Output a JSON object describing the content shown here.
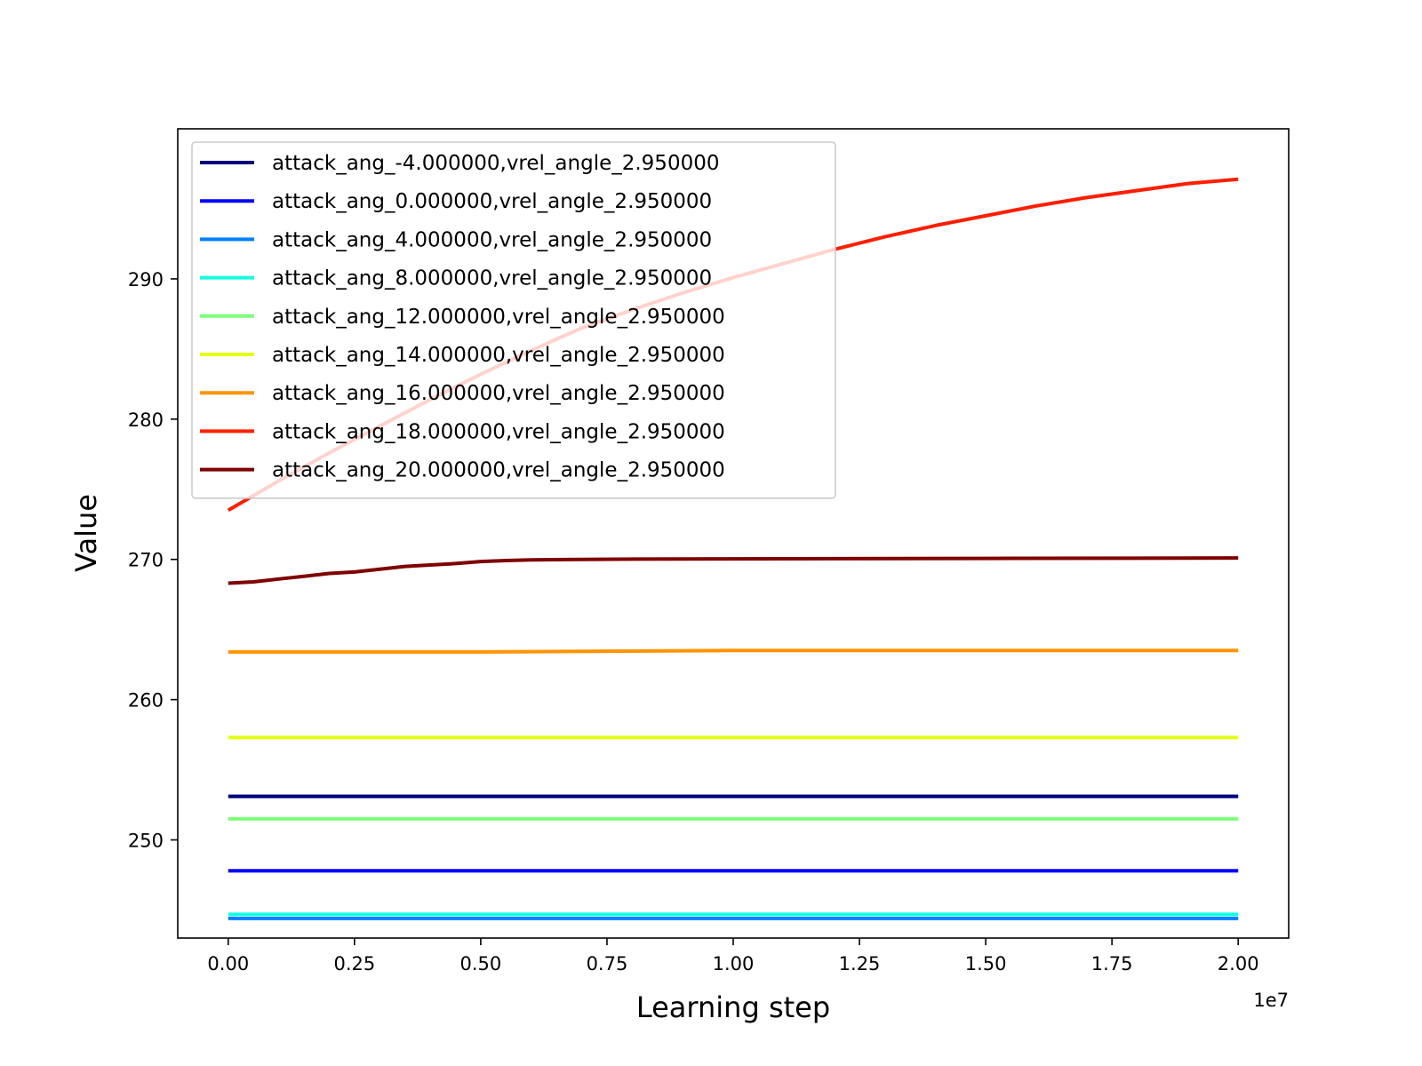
{
  "chart_data": {
    "type": "line",
    "xlabel": "Learning step",
    "ylabel": "Value",
    "x_offset_label": "1e7",
    "x_scale": 10000000,
    "xlim": [
      -0.1,
      2.1
    ],
    "ylim": [
      243.0,
      300.7
    ],
    "xticks": [
      0.0,
      0.25,
      0.5,
      0.75,
      1.0,
      1.25,
      1.5,
      1.75,
      2.0
    ],
    "xtick_labels": [
      "0.00",
      "0.25",
      "0.50",
      "0.75",
      "1.00",
      "1.25",
      "1.50",
      "1.75",
      "2.00"
    ],
    "yticks": [
      250,
      260,
      270,
      280,
      290
    ],
    "ytick_labels": [
      "250",
      "260",
      "270",
      "280",
      "290"
    ],
    "legend_placement": "upper-left",
    "grid": false,
    "series": [
      {
        "name": "attack_ang_-4.000000,vrel_angle_2.950000",
        "color": "#00007f",
        "x": [
          0.0,
          2.0
        ],
        "y": [
          253.1,
          253.1
        ]
      },
      {
        "name": "attack_ang_0.000000,vrel_angle_2.950000",
        "color": "#0000ff",
        "x": [
          0.0,
          2.0
        ],
        "y": [
          247.8,
          247.8
        ]
      },
      {
        "name": "attack_ang_4.000000,vrel_angle_2.950000",
        "color": "#007fff",
        "x": [
          0.0,
          2.0
        ],
        "y": [
          244.4,
          244.4
        ]
      },
      {
        "name": "attack_ang_8.000000,vrel_angle_2.950000",
        "color": "#15ffe1",
        "x": [
          0.0,
          2.0
        ],
        "y": [
          244.7,
          244.7
        ]
      },
      {
        "name": "attack_ang_12.000000,vrel_angle_2.950000",
        "color": "#7cff79",
        "x": [
          0.0,
          2.0
        ],
        "y": [
          251.5,
          251.5
        ]
      },
      {
        "name": "attack_ang_14.000000,vrel_angle_2.950000",
        "color": "#e4ff12",
        "x": [
          0.0,
          2.0
        ],
        "y": [
          257.3,
          257.3
        ]
      },
      {
        "name": "attack_ang_16.000000,vrel_angle_2.950000",
        "color": "#ff9400",
        "x": [
          0.0,
          0.5,
          1.0,
          1.5,
          2.0
        ],
        "y": [
          263.4,
          263.4,
          263.5,
          263.5,
          263.5
        ]
      },
      {
        "name": "attack_ang_18.000000,vrel_angle_2.950000",
        "color": "#ff1e00",
        "x": [
          0.0,
          0.1,
          0.2,
          0.3,
          0.4,
          0.5,
          0.6,
          0.7,
          0.8,
          0.9,
          1.0,
          1.1,
          1.2,
          1.3,
          1.4,
          1.5,
          1.6,
          1.7,
          1.8,
          1.9,
          2.0
        ],
        "y": [
          273.5,
          275.6,
          277.6,
          279.5,
          281.4,
          283.2,
          284.9,
          286.5,
          287.8,
          289.0,
          290.1,
          291.1,
          292.1,
          293.0,
          293.8,
          294.5,
          295.2,
          295.8,
          296.3,
          296.8,
          297.1
        ]
      },
      {
        "name": "attack_ang_20.000000,vrel_angle_2.950000",
        "color": "#7f0000",
        "x": [
          0.0,
          0.05,
          0.1,
          0.15,
          0.2,
          0.25,
          0.3,
          0.35,
          0.4,
          0.45,
          0.5,
          0.55,
          0.6,
          0.7,
          0.8,
          1.0,
          1.2,
          1.5,
          2.0
        ],
        "y": [
          268.3,
          268.4,
          268.6,
          268.8,
          269.0,
          269.1,
          269.3,
          269.5,
          269.6,
          269.7,
          269.85,
          269.92,
          269.96,
          270.0,
          270.02,
          270.04,
          270.05,
          270.07,
          270.1
        ]
      }
    ]
  }
}
